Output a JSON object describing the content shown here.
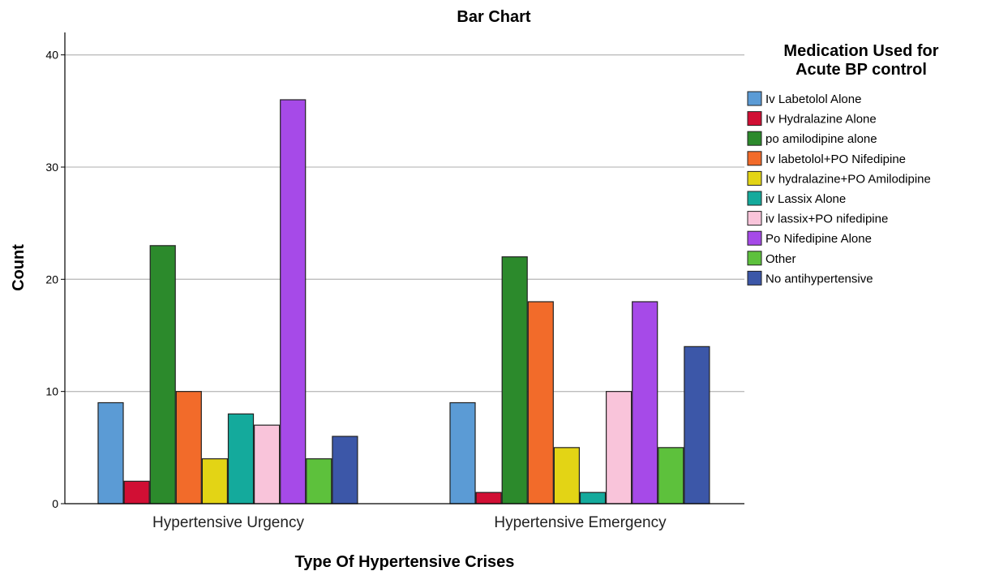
{
  "chart_data": {
    "type": "bar",
    "title": "Bar Chart",
    "xlabel": "Type Of Hypertensive Crises",
    "ylabel": "Count",
    "ylim": [
      0,
      42
    ],
    "yticks": [
      0,
      10,
      20,
      30,
      40
    ],
    "grid": true,
    "legend_position": "right",
    "legend_title": [
      "Medication Used for",
      "Acute BP control"
    ],
    "categories": [
      "Hypertensive Urgency",
      "Hypertensive Emergency"
    ],
    "series": [
      {
        "name": "Iv Labetolol Alone",
        "color": "#5b9bd5",
        "values": [
          9,
          9
        ]
      },
      {
        "name": "Iv Hydralazine Alone",
        "color": "#d10f34",
        "values": [
          2,
          1
        ]
      },
      {
        "name": "po amilodipine alone",
        "color": "#2c8a2c",
        "values": [
          23,
          22
        ]
      },
      {
        "name": "Iv labetolol+PO Nifedipine",
        "color": "#f26b2a",
        "values": [
          10,
          18
        ]
      },
      {
        "name": "Iv hydralazine+PO Amilodipine",
        "color": "#e3d415",
        "values": [
          4,
          5
        ]
      },
      {
        "name": "iv Lassix Alone",
        "color": "#14aa9c",
        "values": [
          8,
          1
        ]
      },
      {
        "name": "iv lassix+PO nifedipine",
        "color": "#f9c4da",
        "values": [
          7,
          10
        ]
      },
      {
        "name": "Po Nifedipine Alone",
        "color": "#a64ae8",
        "values": [
          36,
          18
        ]
      },
      {
        "name": "Other",
        "color": "#5dc13c",
        "values": [
          4,
          5
        ]
      },
      {
        "name": "No antihypertensive",
        "color": "#3c57a8",
        "values": [
          6,
          14
        ]
      }
    ]
  }
}
